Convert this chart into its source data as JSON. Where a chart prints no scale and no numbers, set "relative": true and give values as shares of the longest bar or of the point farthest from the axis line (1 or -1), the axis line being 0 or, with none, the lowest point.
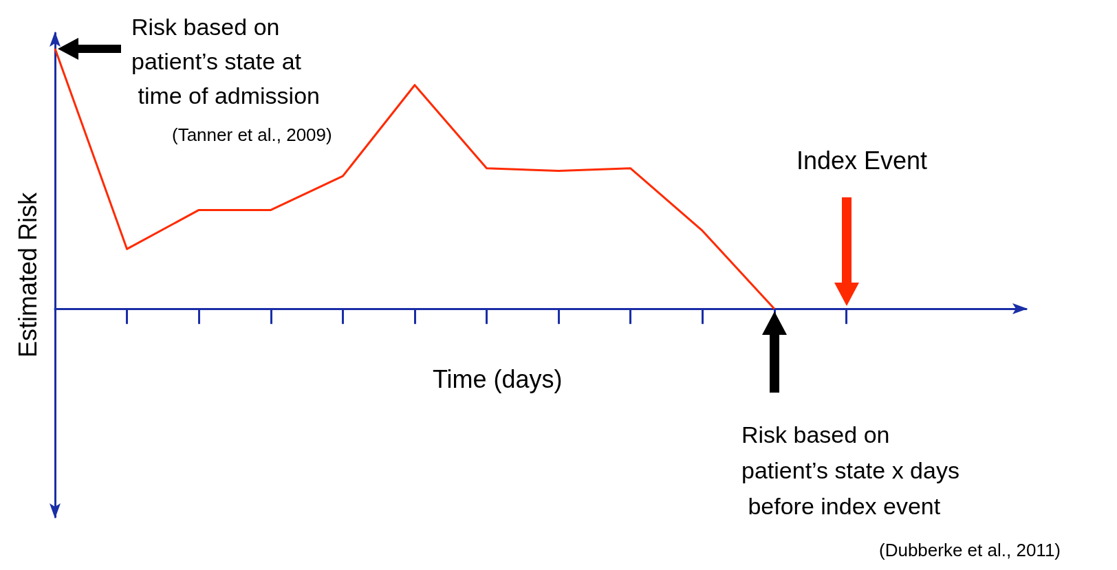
{
  "chart_data": {
    "type": "line",
    "relative": true,
    "xlabel": "Time (days)",
    "ylabel": "Estimated Risk",
    "categories": [
      null,
      null,
      null,
      null,
      null,
      null,
      null,
      null,
      null,
      null,
      null,
      null
    ],
    "series": [
      {
        "color": "#ff2a00",
        "values": [
          1.0,
          0.23,
          0.38,
          0.38,
          0.51,
          0.86,
          0.54,
          0.53,
          0.54,
          0.3,
          0,
          null
        ]
      }
    ],
    "annotations": [
      "Risk based on patient’s state at time of admission",
      "(Tanner et al., 2009)",
      "Index Event",
      "Risk based on patient’s state x days before index event",
      "(Dubberke et al., 2011)"
    ],
    "grid": false,
    "marker": "none",
    "line_style": "solid"
  }
}
